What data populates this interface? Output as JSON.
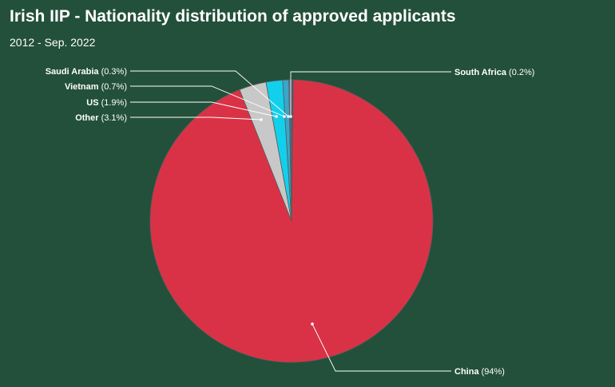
{
  "title": "Irish IIP - Nationality distribution of approved applicants",
  "subtitle": "2012 - Sep. 2022",
  "chart_data": {
    "type": "pie",
    "title": "Irish IIP - Nationality distribution of approved applicants",
    "subtitle": "2012 - Sep. 2022",
    "start_angle": "12 o'clock",
    "direction": "clockwise",
    "legend": "none (leader-line data labels)",
    "slices": [
      {
        "name": "South Africa",
        "pct_label": "(0.2%)",
        "value": 0.2,
        "color": "#3a5f7a"
      },
      {
        "name": "China",
        "pct_label": "(94%)",
        "value": 94,
        "color": "#d93246"
      },
      {
        "name": "Other",
        "pct_label": "(3.1%)",
        "value": 3.1,
        "color": "#c8c8c8"
      },
      {
        "name": "US",
        "pct_label": "(1.9%)",
        "value": 1.9,
        "color": "#12d0ec"
      },
      {
        "name": "Vietnam",
        "pct_label": "(0.7%)",
        "value": 0.7,
        "color": "#3ba6c8"
      },
      {
        "name": "Saudi Arabia",
        "pct_label": "(0.3%)",
        "value": 0.3,
        "color": "#4a6d8c"
      }
    ]
  }
}
